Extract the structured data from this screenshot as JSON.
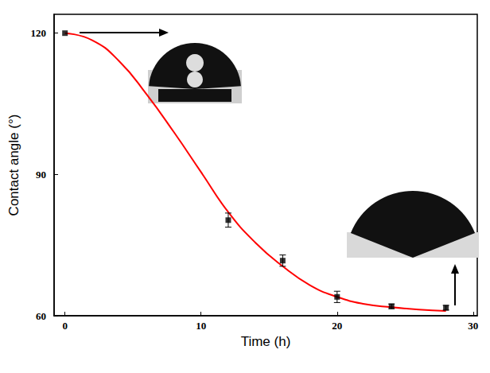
{
  "chart_data": {
    "type": "scatter",
    "x_label": "Time (h)",
    "y_label": "Contact angle (°)",
    "xlim": [
      -0.8,
      30.3
    ],
    "xticks": [
      0,
      10,
      20,
      30
    ],
    "ylim": [
      60,
      124
    ],
    "yticks": [
      60,
      90,
      120
    ],
    "grid": false,
    "series": [
      {
        "type": "scatter",
        "color": "#000000",
        "marker": "square",
        "x": [
          0,
          12,
          16,
          20,
          24,
          28
        ],
        "values": [
          120,
          80.3,
          71.7,
          64,
          62,
          61.7
        ],
        "errors": [
          0,
          1.5,
          1.2,
          1.2,
          0.5,
          0.5
        ]
      },
      {
        "type": "line",
        "color": "#ff0000",
        "line_style": "solid",
        "x": [
          0,
          2,
          4,
          6,
          8,
          10,
          12,
          14,
          16,
          18,
          20,
          22,
          24,
          26,
          28
        ],
        "values": [
          120,
          118.5,
          114,
          107,
          99,
          90.5,
          82,
          75.5,
          70.5,
          66.5,
          64,
          62.5,
          61.8,
          61.3,
          61
        ]
      }
    ]
  }
}
